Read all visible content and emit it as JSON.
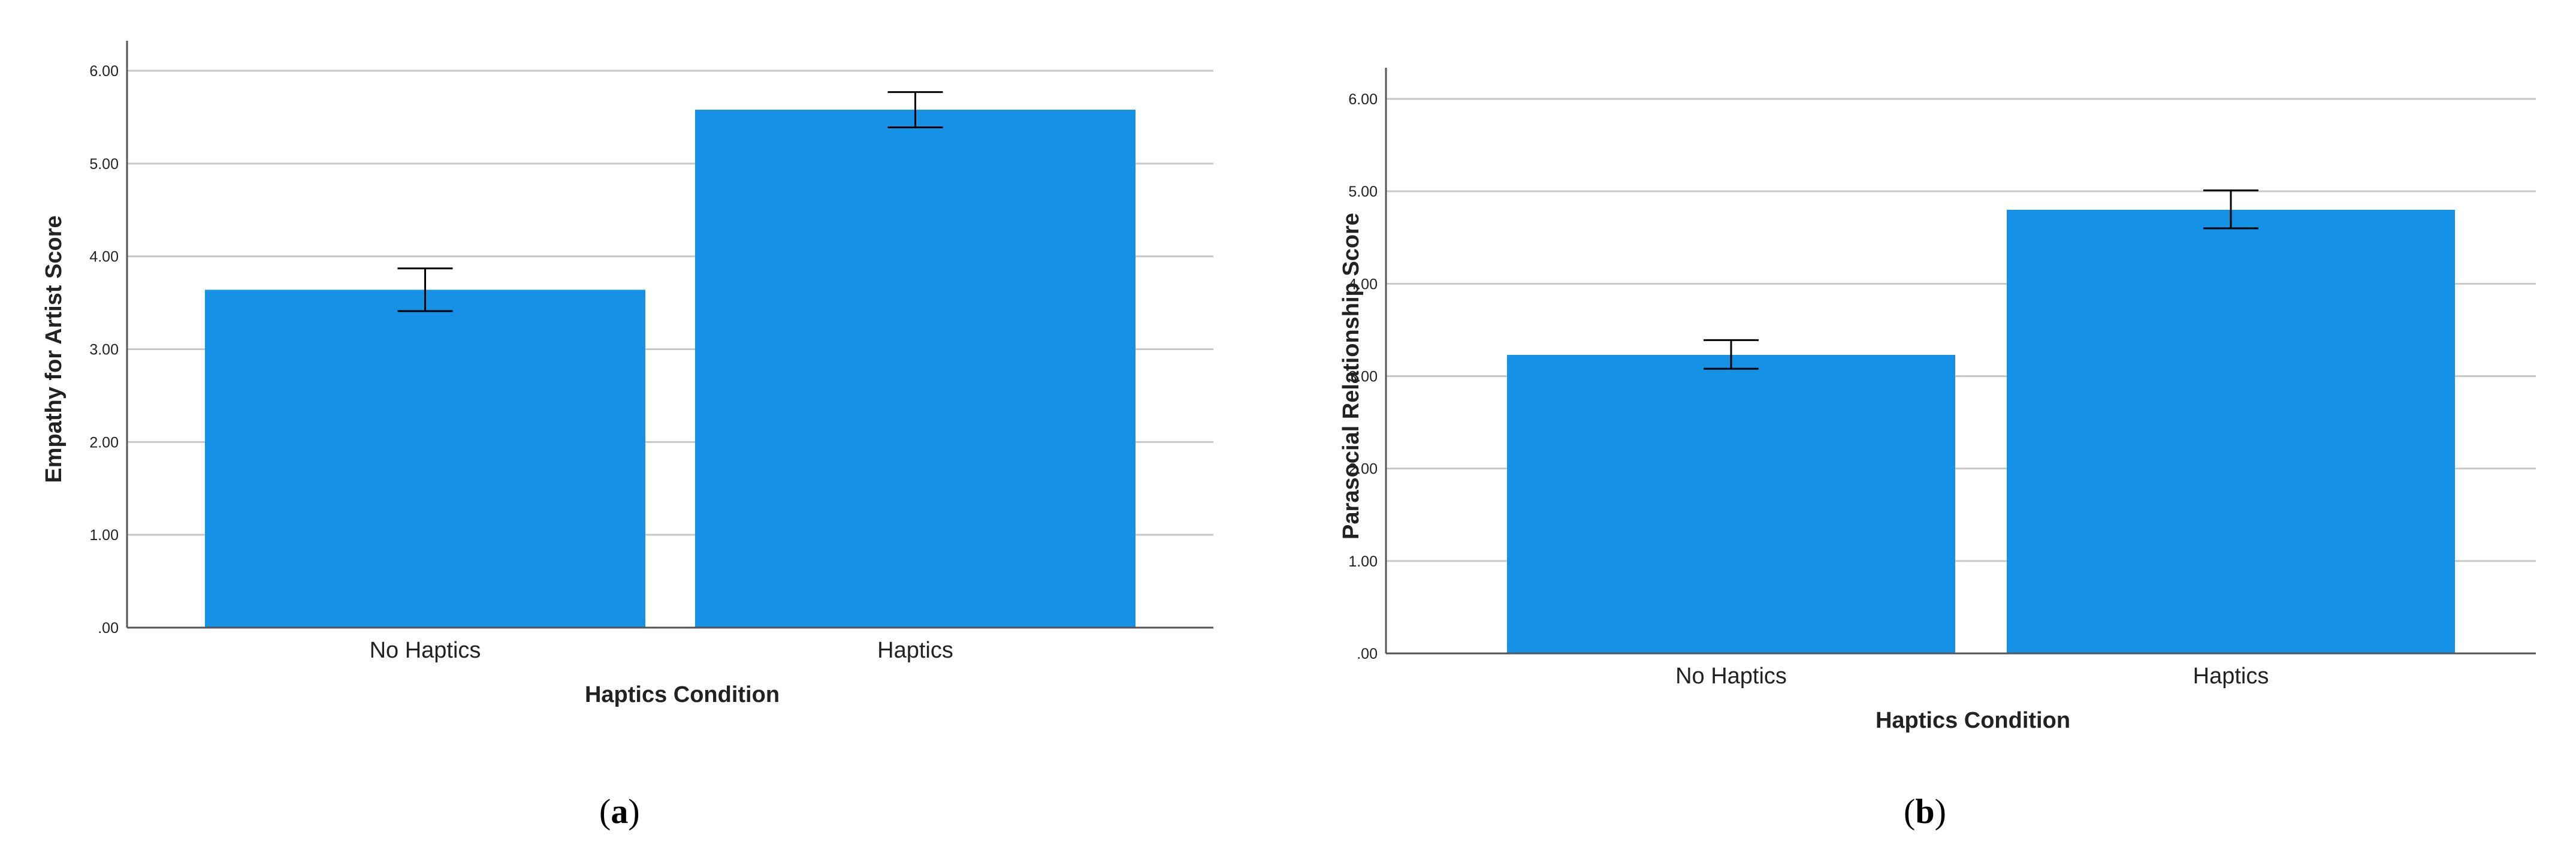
{
  "chart_data": [
    {
      "type": "bar",
      "panel_label": "a",
      "categories": [
        "No Haptics",
        "Haptics"
      ],
      "values": [
        3.64,
        5.58
      ],
      "error_bars": [
        {
          "low": 3.41,
          "high": 3.87
        },
        {
          "low": 5.39,
          "high": 5.77
        }
      ],
      "xlabel": "Haptics Condition",
      "ylabel": "Empathy for Artist Score",
      "ylim": [
        0,
        6
      ],
      "yticks": [
        ".00",
        "1.00",
        "2.00",
        "3.00",
        "4.00",
        "5.00",
        "6.00"
      ],
      "grid": true,
      "bar_color": "#1591e6"
    },
    {
      "type": "bar",
      "panel_label": "b",
      "categories": [
        "No Haptics",
        "Haptics"
      ],
      "values": [
        3.23,
        4.8
      ],
      "error_bars": [
        {
          "low": 3.08,
          "high": 3.39
        },
        {
          "low": 4.6,
          "high": 5.01
        }
      ],
      "xlabel": "Haptics Condition",
      "ylabel": "Parasocial Relationship Score",
      "ylim": [
        0,
        6
      ],
      "yticks": [
        ".00",
        "1.00",
        "2.00",
        "3.00",
        "4.00",
        "5.00",
        "6.00"
      ],
      "grid": true,
      "bar_color": "#1591e6"
    }
  ]
}
